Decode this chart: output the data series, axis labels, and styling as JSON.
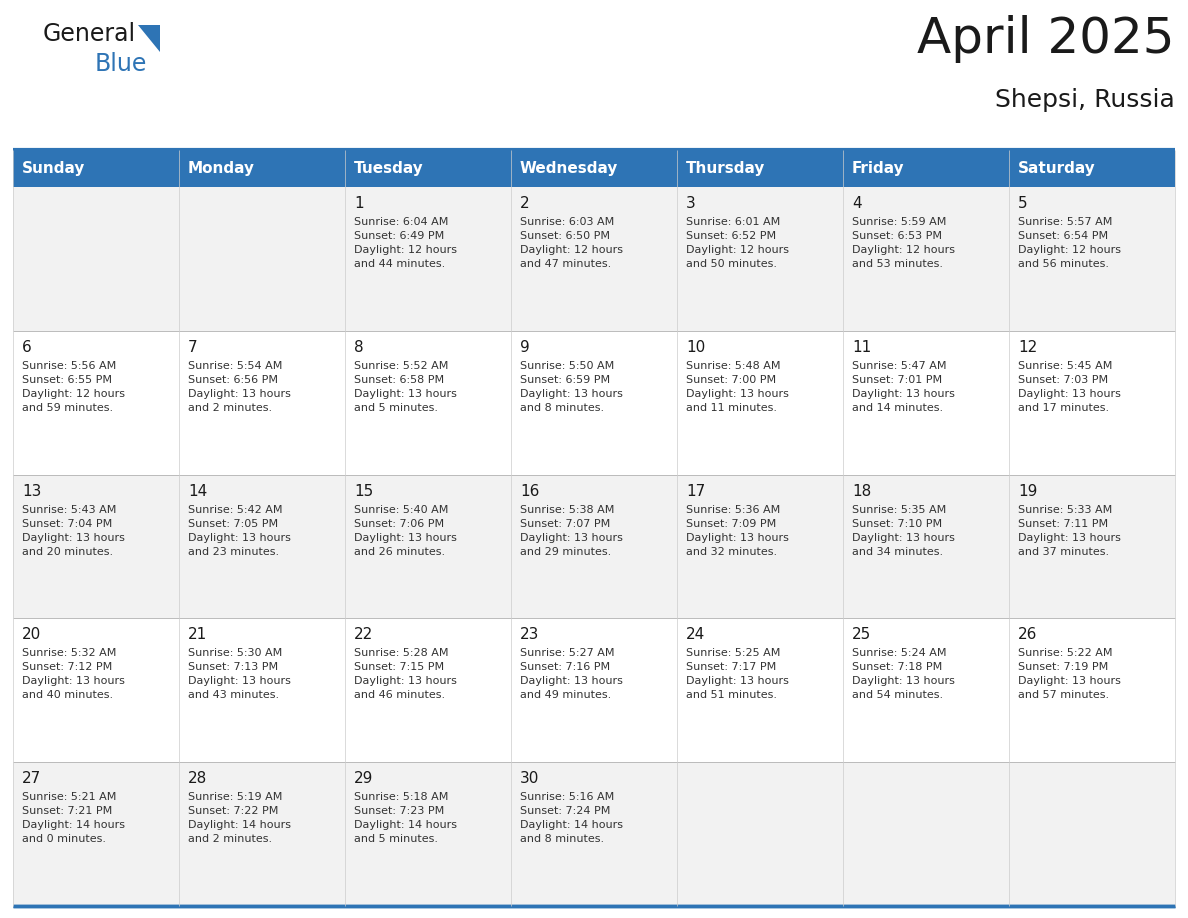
{
  "title": "April 2025",
  "subtitle": "Shepsi, Russia",
  "header_bg_color": "#2E74B5",
  "header_text_color": "#FFFFFF",
  "row_colors": [
    "#F2F2F2",
    "#FFFFFF"
  ],
  "border_color": "#2E74B5",
  "text_color": "#1A1A1A",
  "day_number_color": "#1A1A1A",
  "cell_text_color": "#333333",
  "days_of_week": [
    "Sunday",
    "Monday",
    "Tuesday",
    "Wednesday",
    "Thursday",
    "Friday",
    "Saturday"
  ],
  "weeks": [
    [
      {
        "day": "",
        "info": ""
      },
      {
        "day": "",
        "info": ""
      },
      {
        "day": "1",
        "info": "Sunrise: 6:04 AM\nSunset: 6:49 PM\nDaylight: 12 hours\nand 44 minutes."
      },
      {
        "day": "2",
        "info": "Sunrise: 6:03 AM\nSunset: 6:50 PM\nDaylight: 12 hours\nand 47 minutes."
      },
      {
        "day": "3",
        "info": "Sunrise: 6:01 AM\nSunset: 6:52 PM\nDaylight: 12 hours\nand 50 minutes."
      },
      {
        "day": "4",
        "info": "Sunrise: 5:59 AM\nSunset: 6:53 PM\nDaylight: 12 hours\nand 53 minutes."
      },
      {
        "day": "5",
        "info": "Sunrise: 5:57 AM\nSunset: 6:54 PM\nDaylight: 12 hours\nand 56 minutes."
      }
    ],
    [
      {
        "day": "6",
        "info": "Sunrise: 5:56 AM\nSunset: 6:55 PM\nDaylight: 12 hours\nand 59 minutes."
      },
      {
        "day": "7",
        "info": "Sunrise: 5:54 AM\nSunset: 6:56 PM\nDaylight: 13 hours\nand 2 minutes."
      },
      {
        "day": "8",
        "info": "Sunrise: 5:52 AM\nSunset: 6:58 PM\nDaylight: 13 hours\nand 5 minutes."
      },
      {
        "day": "9",
        "info": "Sunrise: 5:50 AM\nSunset: 6:59 PM\nDaylight: 13 hours\nand 8 minutes."
      },
      {
        "day": "10",
        "info": "Sunrise: 5:48 AM\nSunset: 7:00 PM\nDaylight: 13 hours\nand 11 minutes."
      },
      {
        "day": "11",
        "info": "Sunrise: 5:47 AM\nSunset: 7:01 PM\nDaylight: 13 hours\nand 14 minutes."
      },
      {
        "day": "12",
        "info": "Sunrise: 5:45 AM\nSunset: 7:03 PM\nDaylight: 13 hours\nand 17 minutes."
      }
    ],
    [
      {
        "day": "13",
        "info": "Sunrise: 5:43 AM\nSunset: 7:04 PM\nDaylight: 13 hours\nand 20 minutes."
      },
      {
        "day": "14",
        "info": "Sunrise: 5:42 AM\nSunset: 7:05 PM\nDaylight: 13 hours\nand 23 minutes."
      },
      {
        "day": "15",
        "info": "Sunrise: 5:40 AM\nSunset: 7:06 PM\nDaylight: 13 hours\nand 26 minutes."
      },
      {
        "day": "16",
        "info": "Sunrise: 5:38 AM\nSunset: 7:07 PM\nDaylight: 13 hours\nand 29 minutes."
      },
      {
        "day": "17",
        "info": "Sunrise: 5:36 AM\nSunset: 7:09 PM\nDaylight: 13 hours\nand 32 minutes."
      },
      {
        "day": "18",
        "info": "Sunrise: 5:35 AM\nSunset: 7:10 PM\nDaylight: 13 hours\nand 34 minutes."
      },
      {
        "day": "19",
        "info": "Sunrise: 5:33 AM\nSunset: 7:11 PM\nDaylight: 13 hours\nand 37 minutes."
      }
    ],
    [
      {
        "day": "20",
        "info": "Sunrise: 5:32 AM\nSunset: 7:12 PM\nDaylight: 13 hours\nand 40 minutes."
      },
      {
        "day": "21",
        "info": "Sunrise: 5:30 AM\nSunset: 7:13 PM\nDaylight: 13 hours\nand 43 minutes."
      },
      {
        "day": "22",
        "info": "Sunrise: 5:28 AM\nSunset: 7:15 PM\nDaylight: 13 hours\nand 46 minutes."
      },
      {
        "day": "23",
        "info": "Sunrise: 5:27 AM\nSunset: 7:16 PM\nDaylight: 13 hours\nand 49 minutes."
      },
      {
        "day": "24",
        "info": "Sunrise: 5:25 AM\nSunset: 7:17 PM\nDaylight: 13 hours\nand 51 minutes."
      },
      {
        "day": "25",
        "info": "Sunrise: 5:24 AM\nSunset: 7:18 PM\nDaylight: 13 hours\nand 54 minutes."
      },
      {
        "day": "26",
        "info": "Sunrise: 5:22 AM\nSunset: 7:19 PM\nDaylight: 13 hours\nand 57 minutes."
      }
    ],
    [
      {
        "day": "27",
        "info": "Sunrise: 5:21 AM\nSunset: 7:21 PM\nDaylight: 14 hours\nand 0 minutes."
      },
      {
        "day": "28",
        "info": "Sunrise: 5:19 AM\nSunset: 7:22 PM\nDaylight: 14 hours\nand 2 minutes."
      },
      {
        "day": "29",
        "info": "Sunrise: 5:18 AM\nSunset: 7:23 PM\nDaylight: 14 hours\nand 5 minutes."
      },
      {
        "day": "30",
        "info": "Sunrise: 5:16 AM\nSunset: 7:24 PM\nDaylight: 14 hours\nand 8 minutes."
      },
      {
        "day": "",
        "info": ""
      },
      {
        "day": "",
        "info": ""
      },
      {
        "day": "",
        "info": ""
      }
    ]
  ],
  "logo_general_color": "#1A1A1A",
  "logo_blue_color": "#2E74B5",
  "logo_triangle_color": "#2E74B5",
  "title_fontsize": 36,
  "subtitle_fontsize": 18,
  "header_fontsize": 11,
  "day_num_fontsize": 11,
  "cell_fontsize": 8
}
